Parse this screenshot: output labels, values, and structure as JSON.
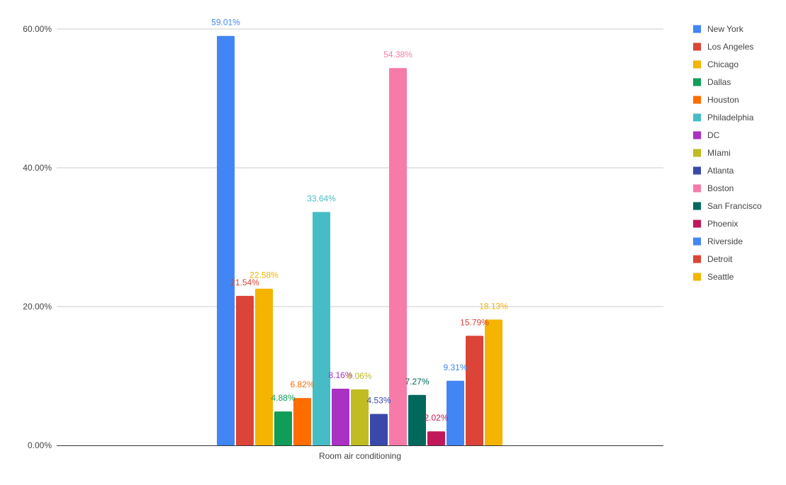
{
  "chart_data": {
    "type": "bar",
    "categories": [
      "Room air conditioning"
    ],
    "series": [
      {
        "name": "New York",
        "values": [
          59.01
        ],
        "label": "59.01%",
        "color": "#4285F4"
      },
      {
        "name": "Los Angeles",
        "values": [
          21.54
        ],
        "label": "21.54%",
        "color": "#DB4437"
      },
      {
        "name": "Chicago",
        "values": [
          22.58
        ],
        "label": "22.58%",
        "color": "#F4B400"
      },
      {
        "name": "Dallas",
        "values": [
          4.88
        ],
        "label": "4.88%",
        "color": "#0F9D58"
      },
      {
        "name": "Houston",
        "values": [
          6.82
        ],
        "label": "6.82%",
        "color": "#FF6D00"
      },
      {
        "name": "Philadelphia",
        "values": [
          33.64
        ],
        "label": "33.64%",
        "color": "#46BDC6"
      },
      {
        "name": "DC",
        "values": [
          8.16
        ],
        "label": "8.16%",
        "color": "#AB30C4"
      },
      {
        "name": "MIami",
        "values": [
          8.06
        ],
        "label": "8.06%",
        "color": "#C0BC22"
      },
      {
        "name": "Atlanta",
        "values": [
          4.53
        ],
        "label": "4.53%",
        "color": "#3949AB"
      },
      {
        "name": "Boston",
        "values": [
          54.38
        ],
        "label": "54.38%",
        "color": "#F67BA9"
      },
      {
        "name": "San Francisco",
        "values": [
          7.27
        ],
        "label": "7.27%",
        "color": "#00695C"
      },
      {
        "name": "Phoenix",
        "values": [
          2.02
        ],
        "label": "2.02%",
        "color": "#C2185B"
      },
      {
        "name": "Riverside",
        "values": [
          9.31
        ],
        "label": "9.31%",
        "color": "#4285F4"
      },
      {
        "name": "Detroit",
        "values": [
          15.79
        ],
        "label": "15.79%",
        "color": "#DB4437"
      },
      {
        "name": "Seattle",
        "values": [
          18.13
        ],
        "label": "18.13%",
        "color": "#F4B400"
      }
    ],
    "yticks": [
      "0.00%",
      "20.00%",
      "40.00%",
      "60.00%"
    ],
    "ytick_values": [
      0,
      20,
      40,
      60
    ],
    "ylim": [
      0,
      60
    ],
    "grid": true,
    "legend_position": "right"
  }
}
